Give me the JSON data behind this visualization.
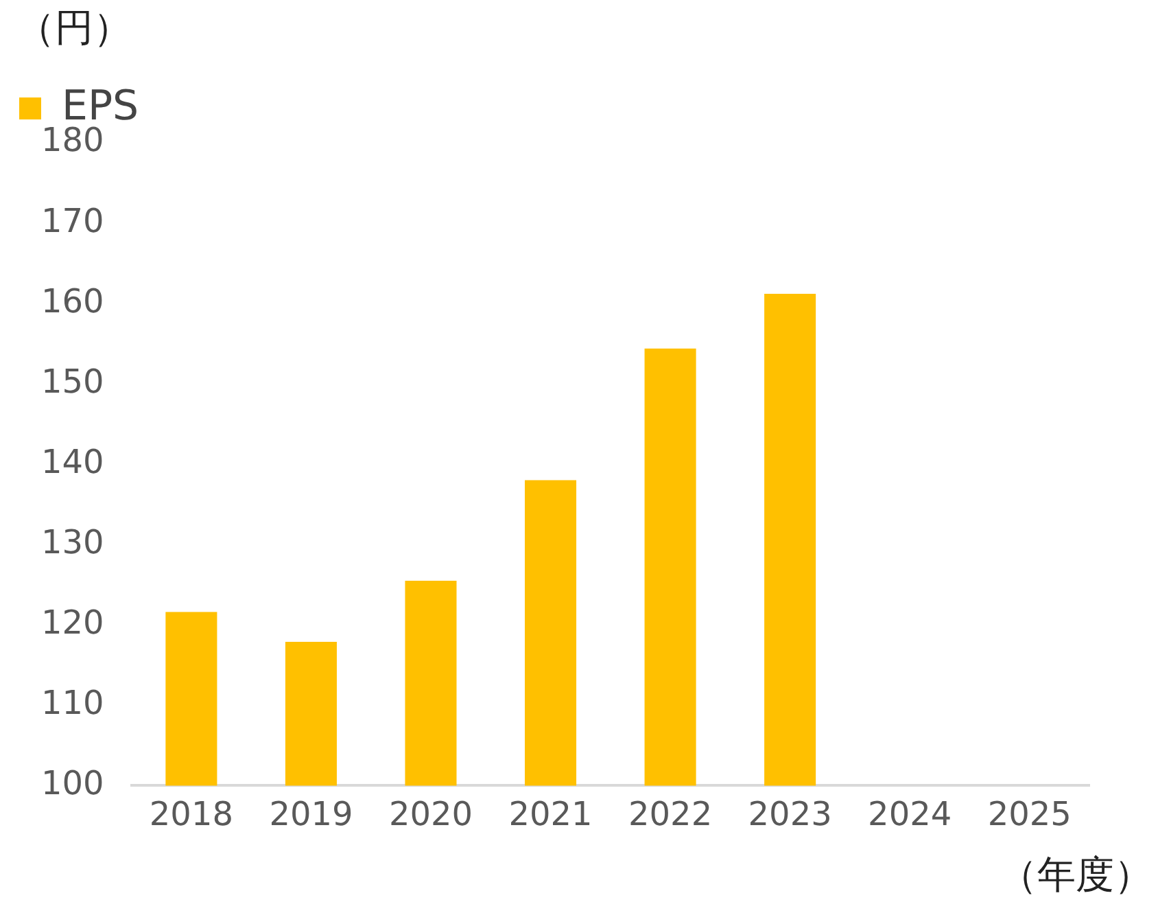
{
  "chart_data": {
    "type": "bar",
    "ylabel": "（円）",
    "xlabel": "（年度）",
    "categories": [
      "2018",
      "2019",
      "2020",
      "2021",
      "2022",
      "2023",
      "2024",
      "2025"
    ],
    "series": [
      {
        "name": "EPS",
        "color": "#ffc000",
        "values": [
          121.6,
          117.9,
          125.5,
          138.0,
          154.4,
          161.2,
          null,
          null
        ]
      }
    ],
    "ylim": [
      100,
      180
    ],
    "yticks": [
      100,
      110,
      120,
      130,
      140,
      150,
      160,
      170,
      180
    ],
    "grid": false,
    "legend": "top left"
  }
}
